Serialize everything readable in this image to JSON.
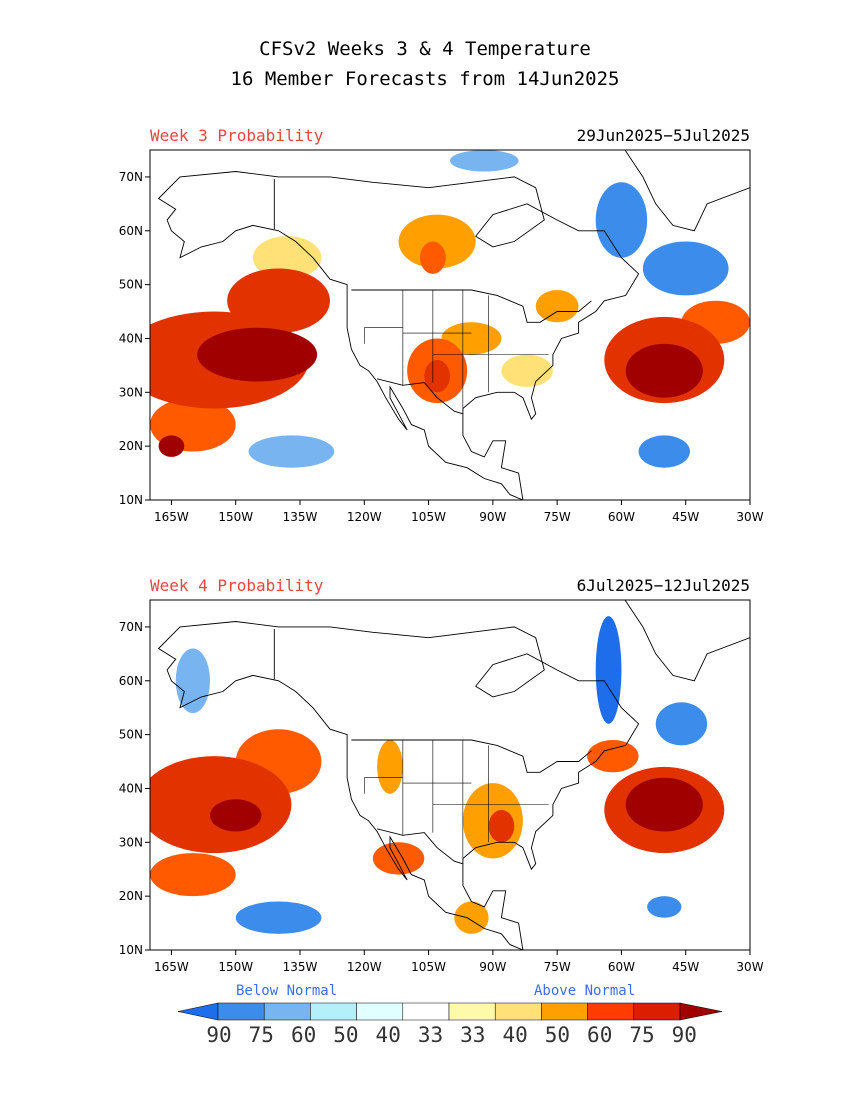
{
  "header": {
    "title_line1": "CFSv2 Weeks 3 & 4 Temperature",
    "title_line2": "16 Member Forecasts from 14Jun2025"
  },
  "panels": [
    {
      "label": "Week 3 Probability",
      "date_range": "29Jun2025−5Jul2025",
      "blobs": [
        {
          "lon": -155,
          "lat": 36,
          "rx": 22,
          "ry": 9,
          "cat": 4
        },
        {
          "lon": -145,
          "lat": 37,
          "rx": 14,
          "ry": 5,
          "cat": 5
        },
        {
          "lon": -140,
          "lat": 47,
          "rx": 12,
          "ry": 6,
          "cat": 4
        },
        {
          "lon": -160,
          "lat": 24,
          "rx": 10,
          "ry": 5,
          "cat": 3
        },
        {
          "lon": -165,
          "lat": 20,
          "rx": 3,
          "ry": 2,
          "cat": 5
        },
        {
          "lon": -138,
          "lat": 55,
          "rx": 8,
          "ry": 4,
          "cat": 1
        },
        {
          "lon": -103,
          "lat": 34,
          "rx": 7,
          "ry": 6,
          "cat": 3
        },
        {
          "lon": -103,
          "lat": 33,
          "rx": 3,
          "ry": 3,
          "cat": 4
        },
        {
          "lon": -95,
          "lat": 40,
          "rx": 7,
          "ry": 3,
          "cat": 2
        },
        {
          "lon": -103,
          "lat": 58,
          "rx": 9,
          "ry": 5,
          "cat": 2
        },
        {
          "lon": -104,
          "lat": 55,
          "rx": 3,
          "ry": 3,
          "cat": 3
        },
        {
          "lon": -82,
          "lat": 34,
          "rx": 6,
          "ry": 3,
          "cat": 1
        },
        {
          "lon": -75,
          "lat": 46,
          "rx": 5,
          "ry": 3,
          "cat": 2
        },
        {
          "lon": -50,
          "lat": 36,
          "rx": 14,
          "ry": 8,
          "cat": 4
        },
        {
          "lon": -50,
          "lat": 34,
          "rx": 9,
          "ry": 5,
          "cat": 5
        },
        {
          "lon": -38,
          "lat": 43,
          "rx": 8,
          "ry": 4,
          "cat": 3
        },
        {
          "lon": -60,
          "lat": 62,
          "rx": 6,
          "ry": 7,
          "cat": -2
        },
        {
          "lon": -45,
          "lat": 53,
          "rx": 10,
          "ry": 5,
          "cat": -2
        },
        {
          "lon": -50,
          "lat": 19,
          "rx": 6,
          "ry": 3,
          "cat": -2
        },
        {
          "lon": -137,
          "lat": 19,
          "rx": 10,
          "ry": 3,
          "cat": -1
        },
        {
          "lon": -92,
          "lat": 73,
          "rx": 8,
          "ry": 2,
          "cat": -1
        }
      ]
    },
    {
      "label": "Week 4 Probability",
      "date_range": "6Jul2025−12Jul2025",
      "blobs": [
        {
          "lon": -155,
          "lat": 37,
          "rx": 18,
          "ry": 9,
          "cat": 4
        },
        {
          "lon": -150,
          "lat": 35,
          "rx": 6,
          "ry": 3,
          "cat": 5
        },
        {
          "lon": -140,
          "lat": 45,
          "rx": 10,
          "ry": 6,
          "cat": 3
        },
        {
          "lon": -160,
          "lat": 24,
          "rx": 10,
          "ry": 4,
          "cat": 3
        },
        {
          "lon": -114,
          "lat": 44,
          "rx": 3,
          "ry": 5,
          "cat": 2
        },
        {
          "lon": -112,
          "lat": 27,
          "rx": 6,
          "ry": 3,
          "cat": 3
        },
        {
          "lon": -90,
          "lat": 34,
          "rx": 7,
          "ry": 7,
          "cat": 2
        },
        {
          "lon": -88,
          "lat": 33,
          "rx": 3,
          "ry": 3,
          "cat": 4
        },
        {
          "lon": -95,
          "lat": 16,
          "rx": 4,
          "ry": 3,
          "cat": 2
        },
        {
          "lon": -50,
          "lat": 36,
          "rx": 14,
          "ry": 8,
          "cat": 4
        },
        {
          "lon": -50,
          "lat": 37,
          "rx": 9,
          "ry": 5,
          "cat": 5
        },
        {
          "lon": -62,
          "lat": 46,
          "rx": 6,
          "ry": 3,
          "cat": 3
        },
        {
          "lon": -63,
          "lat": 62,
          "rx": 3,
          "ry": 10,
          "cat": -3
        },
        {
          "lon": -46,
          "lat": 52,
          "rx": 6,
          "ry": 4,
          "cat": -2
        },
        {
          "lon": -50,
          "lat": 18,
          "rx": 4,
          "ry": 2,
          "cat": -2
        },
        {
          "lon": -140,
          "lat": 16,
          "rx": 10,
          "ry": 3,
          "cat": -2
        },
        {
          "lon": -160,
          "lat": 60,
          "rx": 4,
          "ry": 6,
          "cat": -1
        }
      ]
    }
  ],
  "lon_ticks": [
    "165W",
    "150W",
    "135W",
    "120W",
    "105W",
    "90W",
    "75W",
    "60W",
    "45W",
    "30W"
  ],
  "lat_ticks": [
    "70N",
    "60N",
    "50N",
    "40N",
    "30N",
    "20N",
    "10N"
  ],
  "legend": {
    "below_label": "Below Normal",
    "above_label": "Above Normal",
    "numbers": [
      "90",
      "75",
      "60",
      "50",
      "40",
      "33",
      "33",
      "40",
      "50",
      "60",
      "75",
      "90"
    ],
    "colors": [
      "#1e6eeb",
      "#3c8ceb",
      "#78b4f0",
      "#b4f0fa",
      "#e1ffff",
      "#ffffff",
      "#fffaaa",
      "#ffe178",
      "#ffa000",
      "#ff3c00",
      "#dc1e00",
      "#a00000"
    ]
  },
  "category_colors": {
    "-3": "#1e6eeb",
    "-2": "#3c8ceb",
    "-1": "#78b4f0",
    "1": "#ffe178",
    "2": "#ffa000",
    "3": "#ff5a00",
    "4": "#e13200",
    "5": "#a00000"
  }
}
